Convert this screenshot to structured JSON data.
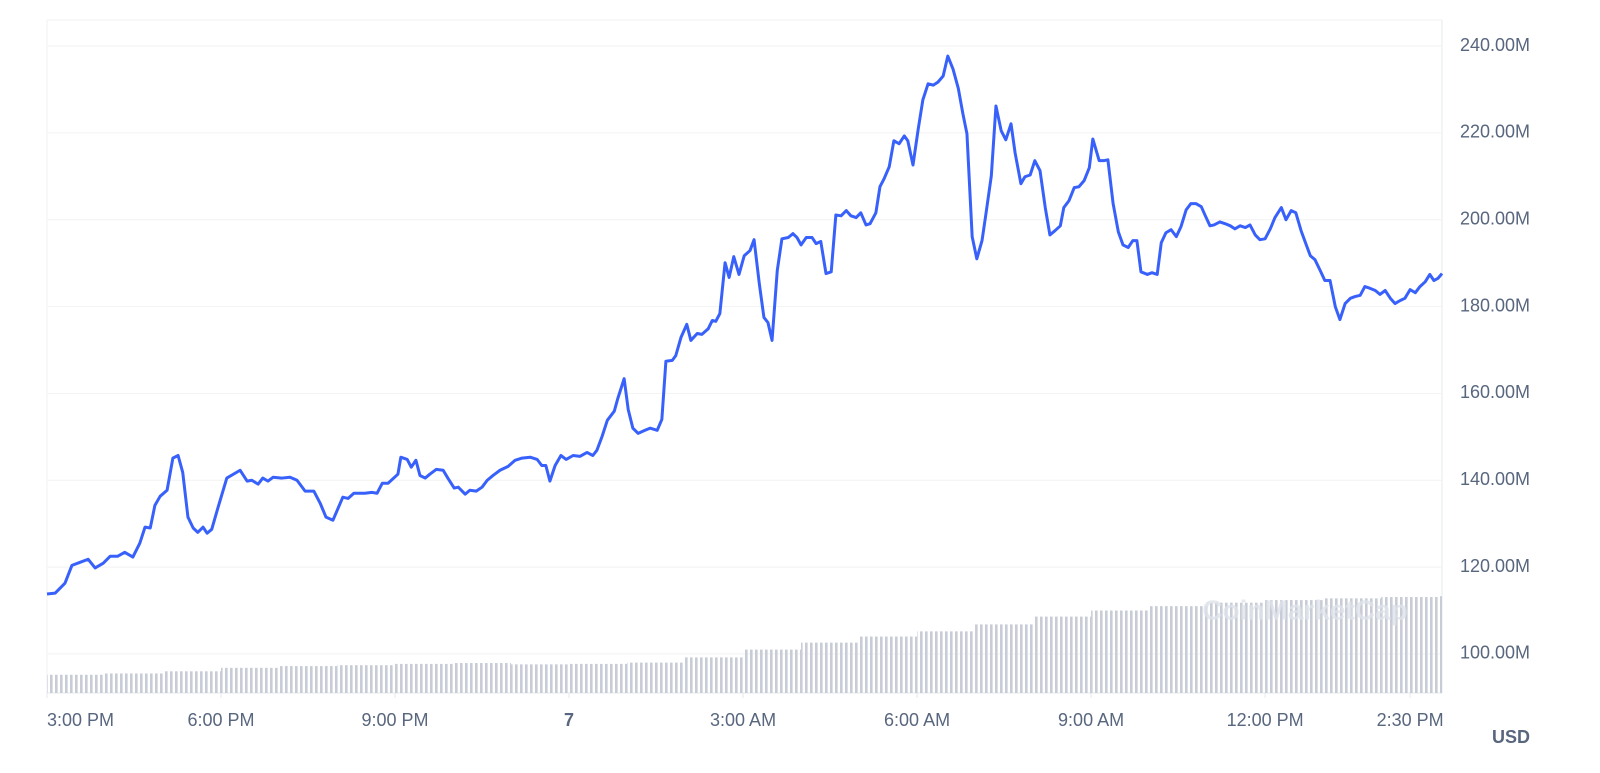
{
  "chart_data": {
    "type": "line",
    "unit_label": "USD",
    "watermark": "CoinMarketCap",
    "xlim": [
      0,
      24.05
    ],
    "xticks": [
      {
        "value": 0,
        "label": "3:00 PM"
      },
      {
        "value": 3,
        "label": "6:00 PM"
      },
      {
        "value": 6,
        "label": "9:00 PM"
      },
      {
        "value": 9,
        "label": "7"
      },
      {
        "value": 12,
        "label": "3:00 AM"
      },
      {
        "value": 15,
        "label": "6:00 AM"
      },
      {
        "value": 18,
        "label": "9:00 AM"
      },
      {
        "value": 21,
        "label": "12:00 PM"
      },
      {
        "value": 23.5,
        "label": "2:30 PM"
      }
    ],
    "ylim": [
      91,
      246
    ],
    "yticks": [
      {
        "value": 100,
        "label": "100.00M"
      },
      {
        "value": 120,
        "label": "120.00M"
      },
      {
        "value": 140,
        "label": "140.00M"
      },
      {
        "value": 160,
        "label": "160.00M"
      },
      {
        "value": 180,
        "label": "180.00M"
      },
      {
        "value": 200,
        "label": "200.00M"
      },
      {
        "value": 220,
        "label": "220.00M"
      },
      {
        "value": 240,
        "label": "240.00M"
      }
    ],
    "grid": true,
    "series": [
      {
        "type": "line",
        "color": "#3861fb",
        "x": [
          0,
          0.14,
          0.31,
          0.43,
          0.57,
          0.71,
          0.83,
          0.97,
          1.09,
          1.22,
          1.34,
          1.48,
          1.6,
          1.69,
          1.78,
          1.86,
          1.95,
          2.07,
          2.17,
          2.26,
          2.34,
          2.43,
          2.52,
          2.6,
          2.69,
          2.76,
          2.84,
          2.95,
          3.1,
          3.33,
          3.45,
          3.53,
          3.64,
          3.72,
          3.81,
          3.9,
          4.05,
          4.19,
          4.31,
          4.45,
          4.6,
          4.71,
          4.81,
          4.93,
          5.1,
          5.19,
          5.29,
          5.48,
          5.6,
          5.69,
          5.78,
          5.88,
          6.05,
          6.1,
          6.21,
          6.28,
          6.36,
          6.43,
          6.52,
          6.6,
          6.71,
          6.83,
          6.91,
          7.02,
          7.09,
          7.21,
          7.29,
          7.4,
          7.5,
          7.59,
          7.69,
          7.81,
          7.95,
          8.07,
          8.19,
          8.33,
          8.45,
          8.53,
          8.6,
          8.67,
          8.76,
          8.86,
          8.95,
          9.07,
          9.19,
          9.31,
          9.41,
          9.48,
          9.57,
          9.66,
          9.78,
          9.84,
          9.95,
          10.02,
          10.1,
          10.19,
          10.31,
          10.4,
          10.52,
          10.6,
          10.67,
          10.78,
          10.84,
          10.93,
          11.03,
          11.1,
          11.21,
          11.29,
          11.4,
          11.47,
          11.53,
          11.6,
          11.69,
          11.76,
          11.84,
          11.93,
          12.02,
          12.12,
          12.19,
          12.28,
          12.36,
          12.43,
          12.5,
          12.59,
          12.67,
          12.78,
          12.86,
          12.93,
          13,
          13.09,
          13.19,
          13.26,
          13.34,
          13.43,
          13.52,
          13.6,
          13.69,
          13.78,
          13.86,
          13.95,
          14.03,
          14.12,
          14.19,
          14.29,
          14.36,
          14.43,
          14.52,
          14.6,
          14.69,
          14.78,
          14.84,
          14.93,
          15.02,
          15.1,
          15.19,
          15.28,
          15.36,
          15.45,
          15.53,
          15.62,
          15.71,
          15.79,
          15.86,
          15.95,
          16.03,
          16.12,
          16.19,
          16.28,
          16.36,
          16.45,
          16.53,
          16.62,
          16.69,
          16.79,
          16.86,
          16.95,
          17.03,
          17.12,
          17.21,
          17.29,
          17.38,
          17.47,
          17.53,
          17.62,
          17.71,
          17.79,
          17.88,
          17.97,
          18.03,
          18.14,
          18.22,
          18.29,
          18.38,
          18.47,
          18.55,
          18.64,
          18.72,
          18.79,
          18.86,
          18.97,
          19.05,
          19.14,
          19.21,
          19.29,
          19.38,
          19.47,
          19.55,
          19.64,
          19.72,
          19.81,
          19.9,
          19.97,
          20.05,
          20.12,
          20.22,
          20.31,
          20.4,
          20.48,
          20.57,
          20.66,
          20.74,
          20.83,
          20.91,
          21,
          21.09,
          21.17,
          21.28,
          21.36,
          21.45,
          21.53,
          21.62,
          21.71,
          21.78,
          21.86,
          21.95,
          22.03,
          22.12,
          22.21,
          22.29,
          22.38,
          22.47,
          22.55,
          22.64,
          22.72,
          22.81,
          22.9,
          22.98,
          23.07,
          23.16,
          23.24,
          23.33,
          23.41,
          23.5,
          23.59,
          23.67,
          23.76,
          23.84,
          23.91,
          23.98,
          24.05
        ],
        "values": [
          113.8,
          114.0,
          116.3,
          120.4,
          121.1,
          121.8,
          119.8,
          120.9,
          122.5,
          122.5,
          123.4,
          122.3,
          125.5,
          129.2,
          129.0,
          134.2,
          136.3,
          137.7,
          145.1,
          145.7,
          141.8,
          131.5,
          129.0,
          128.0,
          129.2,
          127.8,
          128.7,
          133.8,
          140.5,
          142.3,
          139.8,
          140.0,
          139.1,
          140.5,
          139.8,
          140.7,
          140.5,
          140.7,
          140.0,
          137.5,
          137.5,
          134.7,
          131.5,
          130.8,
          136.1,
          135.8,
          137.0,
          137.0,
          137.2,
          137.0,
          139.3,
          139.3,
          141.4,
          145.3,
          144.8,
          143.0,
          144.6,
          141.1,
          140.5,
          141.4,
          142.5,
          142.3,
          140.5,
          138.2,
          138.4,
          136.8,
          137.7,
          137.5,
          138.4,
          140.0,
          141.1,
          142.3,
          143.2,
          144.6,
          145.1,
          145.3,
          144.8,
          143.4,
          143.4,
          139.8,
          143.4,
          145.7,
          144.8,
          145.7,
          145.5,
          146.4,
          145.7,
          146.9,
          150.1,
          153.8,
          155.9,
          158.8,
          163.4,
          156.3,
          152.0,
          150.8,
          151.5,
          152.0,
          151.5,
          154.0,
          167.4,
          167.6,
          168.7,
          172.9,
          175.9,
          172.2,
          173.8,
          173.6,
          174.9,
          176.8,
          176.6,
          178.4,
          190.1,
          186.7,
          191.5,
          187.4,
          191.7,
          192.9,
          195.4,
          185.3,
          177.5,
          176.3,
          172.2,
          188.3,
          195.6,
          195.9,
          196.8,
          195.9,
          194.2,
          195.9,
          195.9,
          194.5,
          195.0,
          187.6,
          188.0,
          201.1,
          200.9,
          202.1,
          200.9,
          200.5,
          201.6,
          198.8,
          199.1,
          201.6,
          207.6,
          209.4,
          212.2,
          218.2,
          217.5,
          219.3,
          218.2,
          212.6,
          220.9,
          227.6,
          231.3,
          231.0,
          231.7,
          233.1,
          237.7,
          234.7,
          230.3,
          224.4,
          219.8,
          196.1,
          191.0,
          195.2,
          201.6,
          210.1,
          226.2,
          220.5,
          218.4,
          222.1,
          215.4,
          208.3,
          209.9,
          210.3,
          213.6,
          211.3,
          202.8,
          196.5,
          197.5,
          198.6,
          202.8,
          204.4,
          207.4,
          207.6,
          209.0,
          212.0,
          218.6,
          213.6,
          213.6,
          213.8,
          203.7,
          197.2,
          194.2,
          193.6,
          195.2,
          195.2,
          188.0,
          187.4,
          187.8,
          187.4,
          194.7,
          197.0,
          197.7,
          196.1,
          198.4,
          202.3,
          203.7,
          203.7,
          203.0,
          200.9,
          198.6,
          198.8,
          199.5,
          199.1,
          198.6,
          197.9,
          198.6,
          198.2,
          198.8,
          196.5,
          195.4,
          195.6,
          197.9,
          200.5,
          202.8,
          200.0,
          202.1,
          201.6,
          197.5,
          194.2,
          191.7,
          190.8,
          188.3,
          186.0,
          186.0,
          180.0,
          177.0,
          180.7,
          181.9,
          182.3,
          182.6,
          184.6,
          184.2,
          183.7,
          182.8,
          183.7,
          181.9,
          180.7,
          181.4,
          181.9,
          183.9,
          183.2,
          184.6,
          185.7,
          187.4,
          186.0,
          186.5,
          187.6
        ]
      },
      {
        "type": "bar",
        "color": "#c8ccd6",
        "x": [
          0,
          1,
          2,
          3,
          4,
          5,
          6,
          7,
          8,
          9,
          10,
          11,
          12,
          13,
          14,
          15,
          16,
          17,
          18,
          19,
          20,
          21,
          22,
          23,
          24
        ],
        "values": [
          95.2,
          95.5,
          96.0,
          96.8,
          97.2,
          97.4,
          97.7,
          97.9,
          97.6,
          97.7,
          98.0,
          99.2,
          101.0,
          102.6,
          104.0,
          105.2,
          106.8,
          108.6,
          110.0,
          111.0,
          111.8,
          112.4,
          112.8,
          113.1,
          113.3
        ]
      }
    ]
  }
}
